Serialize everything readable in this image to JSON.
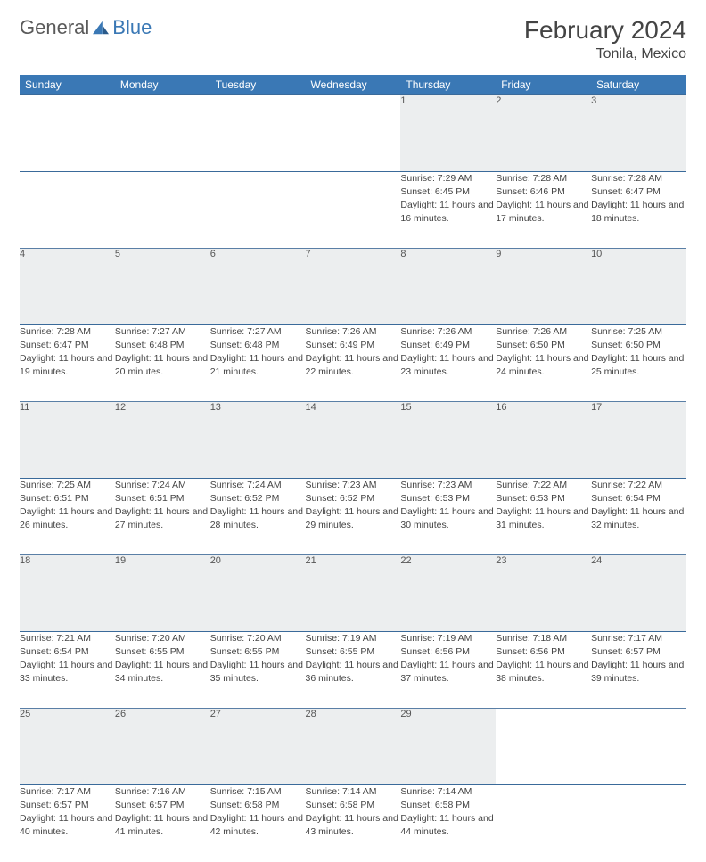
{
  "brand": {
    "part1": "General",
    "part2": "Blue"
  },
  "header": {
    "title": "February 2024",
    "location": "Tonila, Mexico"
  },
  "colors": {
    "brand_blue": "#3a78b5",
    "header_bg": "#3a78b5",
    "header_text": "#ffffff",
    "daynum_bg": "#eceeef",
    "rule": "#5a7fa6",
    "text": "#444444"
  },
  "weekdays": [
    "Sunday",
    "Monday",
    "Tuesday",
    "Wednesday",
    "Thursday",
    "Friday",
    "Saturday"
  ],
  "weeks": [
    [
      null,
      null,
      null,
      null,
      {
        "n": "1",
        "sr": "7:29 AM",
        "ss": "6:45 PM",
        "dl": "11 hours and 16 minutes."
      },
      {
        "n": "2",
        "sr": "7:28 AM",
        "ss": "6:46 PM",
        "dl": "11 hours and 17 minutes."
      },
      {
        "n": "3",
        "sr": "7:28 AM",
        "ss": "6:47 PM",
        "dl": "11 hours and 18 minutes."
      }
    ],
    [
      {
        "n": "4",
        "sr": "7:28 AM",
        "ss": "6:47 PM",
        "dl": "11 hours and 19 minutes."
      },
      {
        "n": "5",
        "sr": "7:27 AM",
        "ss": "6:48 PM",
        "dl": "11 hours and 20 minutes."
      },
      {
        "n": "6",
        "sr": "7:27 AM",
        "ss": "6:48 PM",
        "dl": "11 hours and 21 minutes."
      },
      {
        "n": "7",
        "sr": "7:26 AM",
        "ss": "6:49 PM",
        "dl": "11 hours and 22 minutes."
      },
      {
        "n": "8",
        "sr": "7:26 AM",
        "ss": "6:49 PM",
        "dl": "11 hours and 23 minutes."
      },
      {
        "n": "9",
        "sr": "7:26 AM",
        "ss": "6:50 PM",
        "dl": "11 hours and 24 minutes."
      },
      {
        "n": "10",
        "sr": "7:25 AM",
        "ss": "6:50 PM",
        "dl": "11 hours and 25 minutes."
      }
    ],
    [
      {
        "n": "11",
        "sr": "7:25 AM",
        "ss": "6:51 PM",
        "dl": "11 hours and 26 minutes."
      },
      {
        "n": "12",
        "sr": "7:24 AM",
        "ss": "6:51 PM",
        "dl": "11 hours and 27 minutes."
      },
      {
        "n": "13",
        "sr": "7:24 AM",
        "ss": "6:52 PM",
        "dl": "11 hours and 28 minutes."
      },
      {
        "n": "14",
        "sr": "7:23 AM",
        "ss": "6:52 PM",
        "dl": "11 hours and 29 minutes."
      },
      {
        "n": "15",
        "sr": "7:23 AM",
        "ss": "6:53 PM",
        "dl": "11 hours and 30 minutes."
      },
      {
        "n": "16",
        "sr": "7:22 AM",
        "ss": "6:53 PM",
        "dl": "11 hours and 31 minutes."
      },
      {
        "n": "17",
        "sr": "7:22 AM",
        "ss": "6:54 PM",
        "dl": "11 hours and 32 minutes."
      }
    ],
    [
      {
        "n": "18",
        "sr": "7:21 AM",
        "ss": "6:54 PM",
        "dl": "11 hours and 33 minutes."
      },
      {
        "n": "19",
        "sr": "7:20 AM",
        "ss": "6:55 PM",
        "dl": "11 hours and 34 minutes."
      },
      {
        "n": "20",
        "sr": "7:20 AM",
        "ss": "6:55 PM",
        "dl": "11 hours and 35 minutes."
      },
      {
        "n": "21",
        "sr": "7:19 AM",
        "ss": "6:55 PM",
        "dl": "11 hours and 36 minutes."
      },
      {
        "n": "22",
        "sr": "7:19 AM",
        "ss": "6:56 PM",
        "dl": "11 hours and 37 minutes."
      },
      {
        "n": "23",
        "sr": "7:18 AM",
        "ss": "6:56 PM",
        "dl": "11 hours and 38 minutes."
      },
      {
        "n": "24",
        "sr": "7:17 AM",
        "ss": "6:57 PM",
        "dl": "11 hours and 39 minutes."
      }
    ],
    [
      {
        "n": "25",
        "sr": "7:17 AM",
        "ss": "6:57 PM",
        "dl": "11 hours and 40 minutes."
      },
      {
        "n": "26",
        "sr": "7:16 AM",
        "ss": "6:57 PM",
        "dl": "11 hours and 41 minutes."
      },
      {
        "n": "27",
        "sr": "7:15 AM",
        "ss": "6:58 PM",
        "dl": "11 hours and 42 minutes."
      },
      {
        "n": "28",
        "sr": "7:14 AM",
        "ss": "6:58 PM",
        "dl": "11 hours and 43 minutes."
      },
      {
        "n": "29",
        "sr": "7:14 AM",
        "ss": "6:58 PM",
        "dl": "11 hours and 44 minutes."
      },
      null,
      null
    ]
  ],
  "labels": {
    "sunrise": "Sunrise: ",
    "sunset": "Sunset: ",
    "daylight": "Daylight: "
  }
}
